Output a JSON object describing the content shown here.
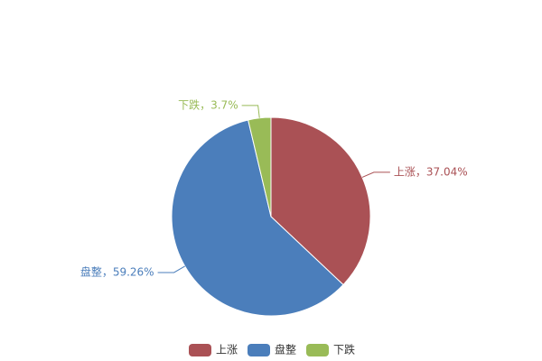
{
  "chart_data": {
    "type": "pie",
    "categories": [
      "上涨",
      "盘整",
      "下跌"
    ],
    "values": [
      37.04,
      59.26,
      3.7
    ],
    "value_labels": [
      "上涨，37.04%",
      "盘整，59.26%",
      "下跌，3.7%"
    ],
    "colors": [
      "#aa5155",
      "#4b7ebb",
      "#99bb57"
    ],
    "legend": "bottom"
  }
}
